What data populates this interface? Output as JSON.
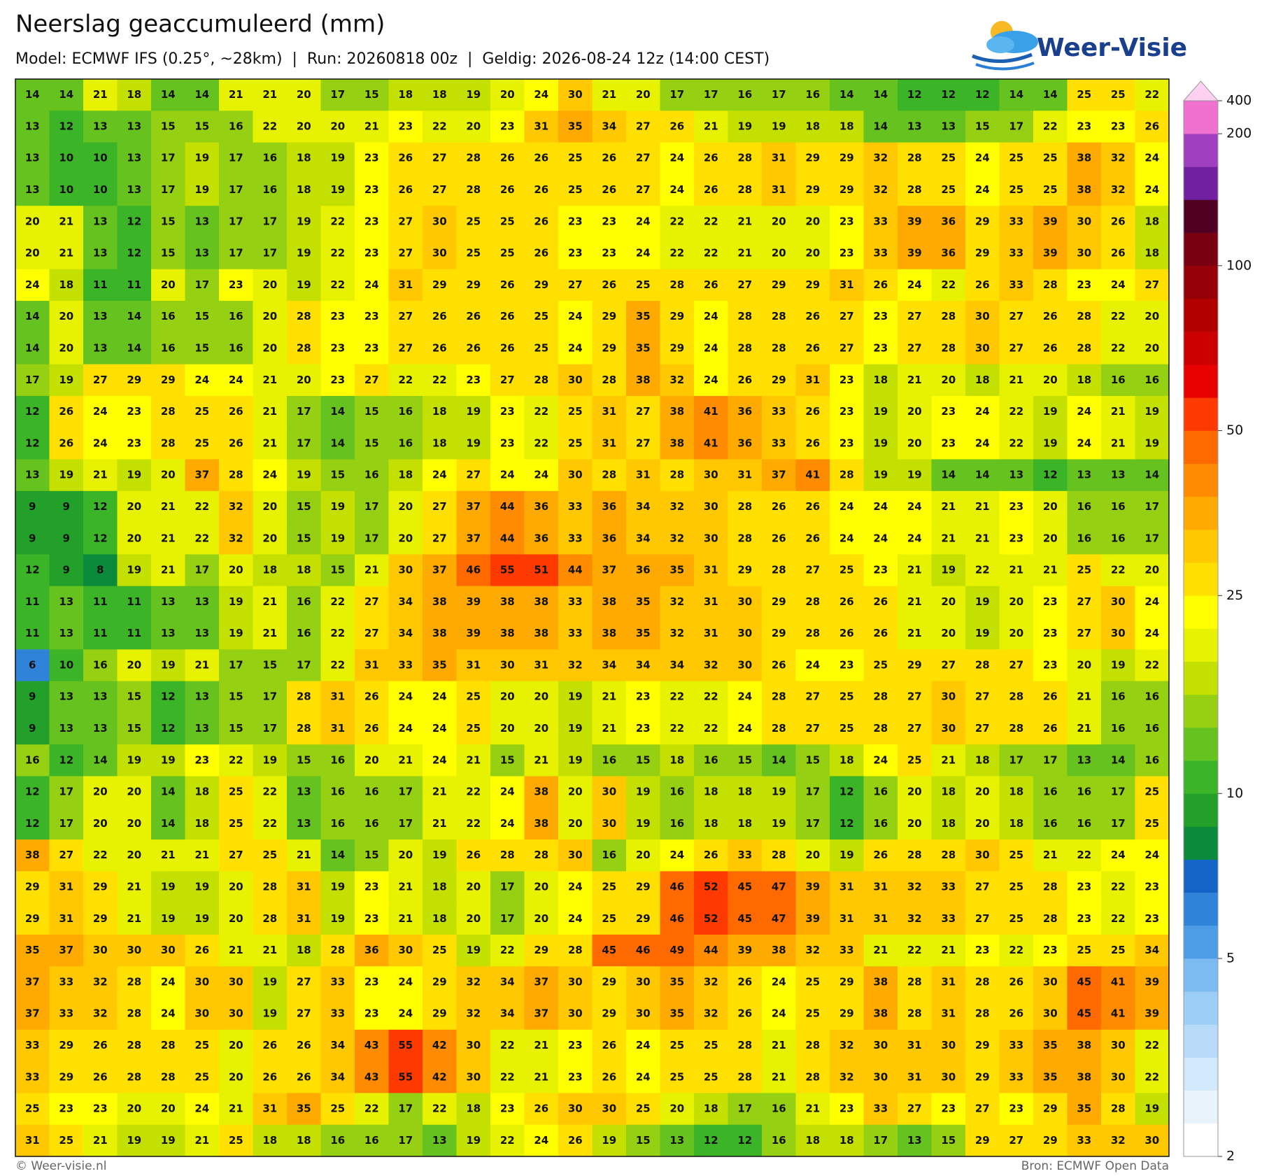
{
  "header": {
    "title": "Neerslag geaccumuleerd (mm)",
    "subtitle": "Model: ECMWF IFS (0.25°, ~28km)  |  Run: 20260818 00z  |  Geldig: 2026-08-24 12z (14:00 CEST)"
  },
  "logo": "Weer-Visie",
  "map": {
    "grid": [
      [
        14,
        14,
        21,
        18,
        14,
        14,
        21,
        21,
        20,
        17,
        15,
        18,
        18,
        19,
        20,
        24,
        30,
        21,
        20,
        17,
        17,
        16,
        17,
        16,
        14,
        14,
        12,
        12,
        12,
        14,
        14,
        25,
        25,
        22
      ],
      [
        13,
        12,
        13,
        13,
        15,
        15,
        16,
        22,
        20,
        20,
        21,
        23,
        22,
        20,
        23,
        31,
        35,
        34,
        27,
        26,
        21,
        19,
        19,
        18,
        18,
        14,
        13,
        13,
        15,
        17,
        22,
        23,
        23,
        26
      ],
      [
        13,
        10,
        10,
        13,
        17,
        19,
        17,
        16,
        18,
        19,
        23,
        26,
        27,
        28,
        26,
        26,
        25,
        26,
        27,
        24,
        26,
        28,
        31,
        29,
        29,
        32,
        28,
        25,
        24,
        25,
        25,
        38,
        32,
        24
      ],
      [
        13,
        10,
        10,
        13,
        17,
        19,
        17,
        16,
        18,
        19,
        23,
        26,
        27,
        28,
        26,
        26,
        25,
        26,
        27,
        24,
        26,
        28,
        31,
        29,
        29,
        32,
        28,
        25,
        24,
        25,
        25,
        38,
        32,
        24
      ],
      [
        20,
        21,
        13,
        12,
        15,
        13,
        17,
        17,
        19,
        22,
        23,
        27,
        30,
        25,
        25,
        26,
        23,
        23,
        24,
        22,
        22,
        21,
        20,
        20,
        23,
        33,
        39,
        36,
        29,
        33,
        39,
        30,
        26,
        18
      ],
      [
        20,
        21,
        13,
        12,
        15,
        13,
        17,
        17,
        19,
        22,
        23,
        27,
        30,
        25,
        25,
        26,
        23,
        23,
        24,
        22,
        22,
        21,
        20,
        20,
        23,
        33,
        39,
        36,
        29,
        33,
        39,
        30,
        26,
        18
      ],
      [
        24,
        18,
        11,
        11,
        20,
        17,
        23,
        20,
        19,
        22,
        24,
        31,
        29,
        29,
        26,
        29,
        27,
        26,
        25,
        28,
        26,
        27,
        29,
        29,
        31,
        26,
        24,
        22,
        26,
        33,
        28,
        23,
        24,
        27
      ],
      [
        14,
        20,
        13,
        14,
        16,
        15,
        16,
        20,
        28,
        23,
        23,
        27,
        26,
        26,
        26,
        25,
        24,
        29,
        35,
        29,
        24,
        28,
        28,
        26,
        27,
        23,
        27,
        28,
        30,
        27,
        26,
        28,
        22,
        20
      ],
      [
        14,
        20,
        13,
        14,
        16,
        15,
        16,
        20,
        28,
        23,
        23,
        27,
        26,
        26,
        26,
        25,
        24,
        29,
        35,
        29,
        24,
        28,
        28,
        26,
        27,
        23,
        27,
        28,
        30,
        27,
        26,
        28,
        22,
        20
      ],
      [
        17,
        19,
        27,
        29,
        29,
        24,
        24,
        21,
        20,
        23,
        27,
        22,
        22,
        23,
        27,
        28,
        30,
        28,
        38,
        32,
        24,
        26,
        29,
        31,
        23,
        18,
        21,
        20,
        18,
        21,
        20,
        18,
        16,
        16
      ],
      [
        12,
        26,
        24,
        23,
        28,
        25,
        26,
        21,
        17,
        14,
        15,
        16,
        18,
        19,
        23,
        22,
        25,
        31,
        27,
        38,
        41,
        36,
        33,
        26,
        23,
        19,
        20,
        23,
        24,
        22,
        19,
        24,
        21,
        19
      ],
      [
        12,
        26,
        24,
        23,
        28,
        25,
        26,
        21,
        17,
        14,
        15,
        16,
        18,
        19,
        23,
        22,
        25,
        31,
        27,
        38,
        41,
        36,
        33,
        26,
        23,
        19,
        20,
        23,
        24,
        22,
        19,
        24,
        21,
        19
      ],
      [
        13,
        19,
        21,
        19,
        20,
        37,
        28,
        24,
        19,
        15,
        16,
        18,
        24,
        27,
        24,
        24,
        30,
        28,
        31,
        28,
        30,
        31,
        37,
        41,
        28,
        19,
        19,
        14,
        14,
        13,
        12,
        13,
        13,
        14
      ],
      [
        9,
        9,
        12,
        20,
        21,
        22,
        32,
        20,
        15,
        19,
        17,
        20,
        27,
        37,
        44,
        36,
        33,
        36,
        34,
        32,
        30,
        28,
        26,
        26,
        24,
        24,
        24,
        21,
        21,
        23,
        20,
        16,
        16,
        17
      ],
      [
        9,
        9,
        12,
        20,
        21,
        22,
        32,
        20,
        15,
        19,
        17,
        20,
        27,
        37,
        44,
        36,
        33,
        36,
        34,
        32,
        30,
        28,
        26,
        26,
        24,
        24,
        24,
        21,
        21,
        23,
        20,
        16,
        16,
        17
      ],
      [
        12,
        9,
        8,
        19,
        21,
        17,
        20,
        18,
        18,
        15,
        21,
        30,
        37,
        46,
        55,
        51,
        44,
        37,
        36,
        35,
        31,
        29,
        28,
        27,
        25,
        23,
        21,
        19,
        22,
        21,
        21,
        25,
        22,
        20
      ],
      [
        11,
        13,
        11,
        11,
        13,
        13,
        19,
        21,
        16,
        22,
        27,
        34,
        38,
        39,
        38,
        38,
        33,
        38,
        35,
        32,
        31,
        30,
        29,
        28,
        26,
        26,
        21,
        20,
        19,
        20,
        23,
        27,
        30,
        24
      ],
      [
        11,
        13,
        11,
        11,
        13,
        13,
        19,
        21,
        16,
        22,
        27,
        34,
        38,
        39,
        38,
        38,
        33,
        38,
        35,
        32,
        31,
        30,
        29,
        28,
        26,
        26,
        21,
        20,
        19,
        20,
        23,
        27,
        30,
        24
      ],
      [
        6,
        10,
        16,
        20,
        19,
        21,
        17,
        15,
        17,
        22,
        31,
        33,
        35,
        31,
        30,
        31,
        32,
        34,
        34,
        34,
        32,
        30,
        26,
        24,
        23,
        25,
        29,
        27,
        28,
        27,
        23,
        20,
        19,
        22
      ],
      [
        9,
        13,
        13,
        15,
        12,
        13,
        15,
        17,
        28,
        31,
        26,
        24,
        24,
        25,
        20,
        20,
        19,
        21,
        23,
        22,
        22,
        24,
        28,
        27,
        25,
        28,
        27,
        30,
        27,
        28,
        26,
        21,
        16,
        16
      ],
      [
        9,
        13,
        13,
        15,
        12,
        13,
        15,
        17,
        28,
        31,
        26,
        24,
        24,
        25,
        20,
        20,
        19,
        21,
        23,
        22,
        22,
        24,
        28,
        27,
        25,
        28,
        27,
        30,
        27,
        28,
        26,
        21,
        16,
        16
      ],
      [
        16,
        12,
        14,
        19,
        19,
        23,
        22,
        19,
        15,
        16,
        20,
        21,
        24,
        21,
        15,
        21,
        19,
        16,
        15,
        18,
        16,
        15,
        14,
        15,
        18,
        24,
        25,
        21,
        18,
        17,
        17,
        13,
        14,
        16
      ],
      [
        12,
        17,
        20,
        20,
        14,
        18,
        25,
        22,
        13,
        16,
        16,
        17,
        21,
        22,
        24,
        38,
        20,
        30,
        19,
        16,
        18,
        18,
        19,
        17,
        12,
        16,
        20,
        18,
        20,
        18,
        16,
        16,
        17,
        25
      ],
      [
        12,
        17,
        20,
        20,
        14,
        18,
        25,
        22,
        13,
        16,
        16,
        17,
        21,
        22,
        24,
        38,
        20,
        30,
        19,
        16,
        18,
        18,
        19,
        17,
        12,
        16,
        20,
        18,
        20,
        18,
        16,
        16,
        17,
        25
      ],
      [
        38,
        27,
        22,
        20,
        21,
        21,
        27,
        25,
        21,
        14,
        15,
        20,
        19,
        26,
        28,
        28,
        30,
        16,
        20,
        24,
        26,
        33,
        28,
        20,
        19,
        26,
        28,
        28,
        30,
        25,
        21,
        22,
        24,
        24
      ],
      [
        29,
        31,
        29,
        21,
        19,
        19,
        20,
        28,
        31,
        19,
        23,
        21,
        18,
        20,
        17,
        20,
        24,
        25,
        29,
        46,
        52,
        45,
        47,
        39,
        31,
        31,
        32,
        33,
        27,
        25,
        28,
        23,
        22,
        23
      ],
      [
        29,
        31,
        29,
        21,
        19,
        19,
        20,
        28,
        31,
        19,
        23,
        21,
        18,
        20,
        17,
        20,
        24,
        25,
        29,
        46,
        52,
        45,
        47,
        39,
        31,
        31,
        32,
        33,
        27,
        25,
        28,
        23,
        22,
        23
      ],
      [
        35,
        37,
        30,
        30,
        30,
        26,
        21,
        21,
        18,
        28,
        36,
        30,
        25,
        19,
        22,
        29,
        28,
        45,
        46,
        49,
        44,
        39,
        38,
        32,
        33,
        21,
        22,
        21,
        23,
        22,
        23,
        25,
        25,
        34
      ],
      [
        37,
        33,
        32,
        28,
        24,
        30,
        30,
        19,
        27,
        33,
        23,
        24,
        29,
        32,
        34,
        37,
        30,
        29,
        30,
        35,
        32,
        26,
        24,
        25,
        29,
        38,
        28,
        31,
        28,
        26,
        30,
        45,
        41,
        39
      ],
      [
        37,
        33,
        32,
        28,
        24,
        30,
        30,
        19,
        27,
        33,
        23,
        24,
        29,
        32,
        34,
        37,
        30,
        29,
        30,
        35,
        32,
        26,
        24,
        25,
        29,
        38,
        28,
        31,
        28,
        26,
        30,
        45,
        41,
        39
      ],
      [
        33,
        29,
        26,
        28,
        28,
        25,
        20,
        26,
        26,
        34,
        43,
        55,
        42,
        30,
        22,
        21,
        23,
        26,
        24,
        25,
        25,
        28,
        21,
        28,
        32,
        30,
        31,
        30,
        29,
        33,
        35,
        38,
        30,
        22
      ],
      [
        33,
        29,
        26,
        28,
        28,
        25,
        20,
        26,
        26,
        34,
        43,
        55,
        42,
        30,
        22,
        21,
        23,
        26,
        24,
        25,
        25,
        28,
        21,
        28,
        32,
        30,
        31,
        30,
        29,
        33,
        35,
        38,
        30,
        22
      ],
      [
        25,
        23,
        23,
        20,
        20,
        24,
        21,
        31,
        35,
        25,
        22,
        17,
        22,
        18,
        23,
        26,
        30,
        30,
        25,
        20,
        18,
        17,
        16,
        21,
        23,
        33,
        27,
        23,
        27,
        23,
        29,
        35,
        28,
        19
      ],
      [
        31,
        25,
        21,
        19,
        19,
        21,
        25,
        18,
        18,
        16,
        16,
        17,
        13,
        19,
        22,
        24,
        26,
        19,
        15,
        13,
        12,
        12,
        16,
        18,
        18,
        17,
        13,
        15,
        29,
        27,
        29,
        33,
        32,
        30
      ]
    ]
  },
  "colorbar": {
    "levels": [
      2,
      2.5,
      3,
      3.5,
      4,
      4.5,
      5,
      6,
      7,
      8,
      9,
      10,
      12.5,
      15,
      17.5,
      20,
      22.5,
      25,
      30,
      35,
      40,
      45,
      50,
      60,
      70,
      80,
      90,
      100,
      125,
      150,
      175,
      200,
      400
    ],
    "colors": [
      "#ffffff",
      "#e8f3fc",
      "#d2e8fb",
      "#b8dbf9",
      "#9ccdf6",
      "#7cbbf1",
      "#4c9ce6",
      "#2f84da",
      "#1464c8",
      "#0a8a3a",
      "#22a02a",
      "#3cb428",
      "#66c21e",
      "#96d012",
      "#c4e000",
      "#e6f200",
      "#ffff00",
      "#ffe000",
      "#ffc800",
      "#ffaa00",
      "#ff8c00",
      "#ff6a00",
      "#ff3a00",
      "#e60000",
      "#cc0000",
      "#b00000",
      "#960008",
      "#780010",
      "#500020",
      "#7020a0",
      "#a040c0",
      "#f070d0",
      "#ffd0f0"
    ],
    "ticks": [
      2,
      5,
      10,
      25,
      50,
      100,
      200,
      400
    ]
  },
  "footer": {
    "left": "© Weer-visie.nl",
    "right": "Bron: ECMWF Open Data"
  }
}
